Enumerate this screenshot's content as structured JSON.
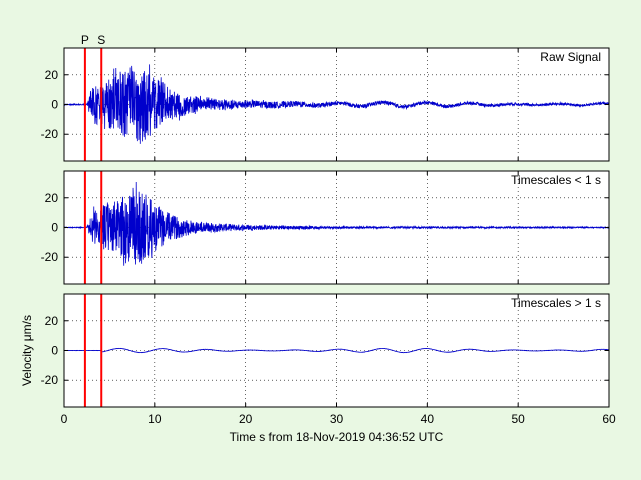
{
  "chart_data": {
    "type": "line",
    "xlabel": "Time s from 18-Nov-2019 04:36:52 UTC",
    "ylabel": "Velocity μm/s",
    "xlim": [
      0,
      60
    ],
    "ylim": [
      -38,
      38
    ],
    "xticks": [
      0,
      10,
      20,
      30,
      40,
      50,
      60
    ],
    "yticks": [
      20,
      0,
      -20
    ],
    "grid": true,
    "phase_markers": [
      {
        "name": "P",
        "x": 2.3,
        "color": "#ff0000"
      },
      {
        "name": "S",
        "x": 4.1,
        "color": "#ff0000"
      }
    ],
    "panels": [
      {
        "title": "Raw Signal",
        "series_color": "#0000cc",
        "envelope": [
          {
            "x": 0,
            "amp": 0.4
          },
          {
            "x": 2.5,
            "amp": 0.4
          },
          {
            "x": 3.2,
            "amp": 14
          },
          {
            "x": 4.5,
            "amp": 18
          },
          {
            "x": 6,
            "amp": 22
          },
          {
            "x": 7.5,
            "amp": 30
          },
          {
            "x": 8.8,
            "amp": 28
          },
          {
            "x": 10,
            "amp": 20
          },
          {
            "x": 12,
            "amp": 10
          },
          {
            "x": 15,
            "amp": 5
          },
          {
            "x": 20,
            "amp": 3
          },
          {
            "x": 30,
            "amp": 1.5
          },
          {
            "x": 60,
            "amp": 0.8
          }
        ],
        "long_period_amp": 1.5,
        "long_period_onset": 4.1
      },
      {
        "title": "Timescales < 1 s",
        "series_color": "#0000cc",
        "envelope": [
          {
            "x": 0,
            "amp": 0.3
          },
          {
            "x": 2.5,
            "amp": 0.3
          },
          {
            "x": 3.2,
            "amp": 13
          },
          {
            "x": 4.5,
            "amp": 17
          },
          {
            "x": 6,
            "amp": 21
          },
          {
            "x": 7.5,
            "amp": 30
          },
          {
            "x": 8.8,
            "amp": 27
          },
          {
            "x": 10,
            "amp": 18
          },
          {
            "x": 12,
            "amp": 9
          },
          {
            "x": 15,
            "amp": 4
          },
          {
            "x": 20,
            "amp": 2
          },
          {
            "x": 30,
            "amp": 0.8
          },
          {
            "x": 60,
            "amp": 0.4
          }
        ],
        "long_period_amp": 0,
        "long_period_onset": 4.1
      },
      {
        "title": "Timescales > 1 s",
        "series_color": "#0000cc",
        "envelope": [
          {
            "x": 0,
            "amp": 0.1
          },
          {
            "x": 60,
            "amp": 0.1
          }
        ],
        "long_period_amp": 1.4,
        "long_period_onset": 4.1
      }
    ]
  }
}
